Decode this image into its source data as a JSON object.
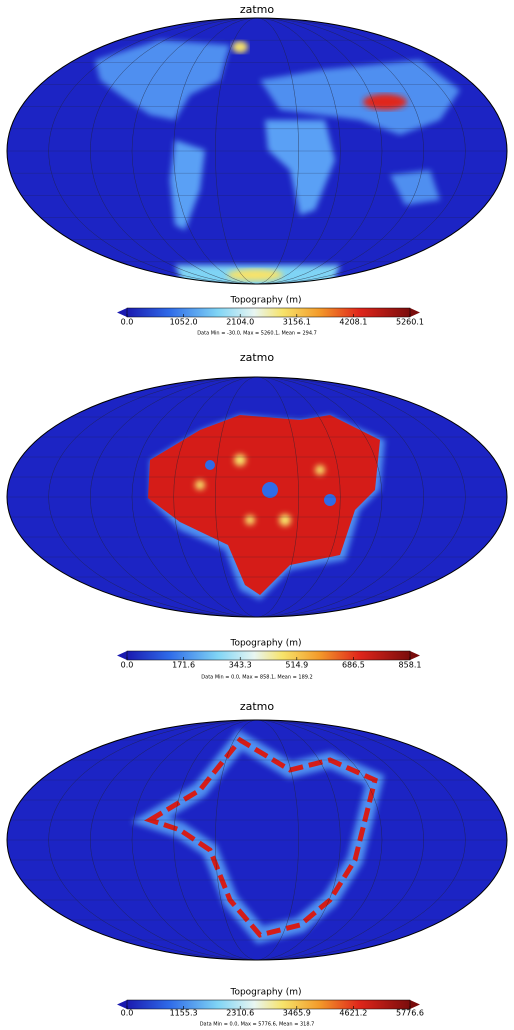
{
  "panels": [
    {
      "title": "zatmo",
      "colorbar": {
        "label": "Topography (m)",
        "ticks": [
          {
            "value": 0,
            "label": "0.0"
          },
          {
            "value": 1052,
            "label": "1052.0"
          },
          {
            "value": 2104,
            "label": "2104.0"
          },
          {
            "value": 3156.1,
            "label": "3156.1"
          },
          {
            "value": 4208.1,
            "label": "4208.1"
          },
          {
            "value": 5260.1,
            "label": "5260.1"
          }
        ]
      },
      "stats": "Data Min = -30.0, Max = 5260.1, Mean = 294.7"
    },
    {
      "title": "zatmo",
      "colorbar": {
        "label": "Topography (m)",
        "ticks": [
          {
            "value": 0,
            "label": "0.0"
          },
          171.6,
          343.3,
          514.9,
          686.5,
          858.1
        ]
      },
      "stats": "Data Min = 0.0, Max = 858.1, Mean = 189.2"
    },
    {
      "title": "zatmo",
      "colorbar": {
        "label": "Topography (m)",
        "ticks": [
          {
            "value": 0,
            "label": "0.0"
          },
          1155.3,
          2310.6,
          3465.9,
          4621.2,
          5776.6
        ]
      },
      "stats": "Data Min = 0.0, Max = 5776.6, Mean = 318.7"
    }
  ]
}
